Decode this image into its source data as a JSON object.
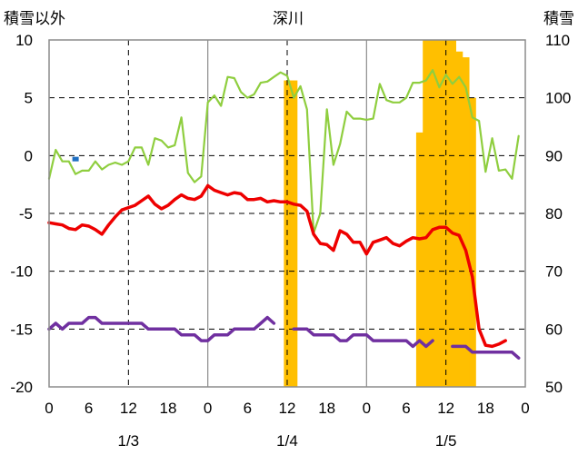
{
  "chart_data": {
    "type": "line",
    "title": "深川",
    "left_axis_label": "積雪以外",
    "right_axis_label": "積雪",
    "left_ylim": [
      -20,
      10
    ],
    "left_ticks": [
      10,
      5,
      0,
      -5,
      -10,
      -15,
      -20
    ],
    "right_ylim": [
      50,
      110
    ],
    "right_ticks": [
      110,
      100,
      90,
      80,
      70,
      60,
      50
    ],
    "x_hour_labels": [
      "0",
      "6",
      "12",
      "18",
      "0",
      "6",
      "12",
      "18",
      "0",
      "6",
      "12",
      "18",
      "0"
    ],
    "x_hour_positions": [
      0,
      6,
      12,
      18,
      24,
      30,
      36,
      42,
      48,
      54,
      60,
      66,
      72
    ],
    "dates": [
      {
        "label": "1/3",
        "hour": 12
      },
      {
        "label": "1/4",
        "hour": 36
      },
      {
        "label": "1/5",
        "hour": 60
      }
    ],
    "dashed_grid_hours": [
      12,
      36,
      60
    ],
    "solid_grid_hours": [
      24,
      48
    ],
    "colors": {
      "green": "#8fce3f",
      "red": "#ee0000",
      "purple": "#7030a0",
      "bars": "#ffbf00",
      "blue": "#1f6fc2"
    },
    "series": [
      {
        "key": "green",
        "axis": "left",
        "values": [
          [
            0,
            -2.0
          ],
          [
            1,
            0.5
          ],
          [
            2,
            -0.5
          ],
          [
            3,
            -0.5
          ],
          [
            4,
            -1.6
          ],
          [
            5,
            -1.3
          ],
          [
            6,
            -1.3
          ],
          [
            7,
            -0.5
          ],
          [
            8,
            -1.2
          ],
          [
            9,
            -0.8
          ],
          [
            10,
            -0.6
          ],
          [
            11,
            -0.8
          ],
          [
            12,
            -0.5
          ],
          [
            13,
            0.7
          ],
          [
            14,
            0.7
          ],
          [
            15,
            -0.8
          ],
          [
            16,
            1.5
          ],
          [
            17,
            1.3
          ],
          [
            18,
            0.7
          ],
          [
            19,
            0.9
          ],
          [
            20,
            3.3
          ],
          [
            21,
            -1.5
          ],
          [
            22,
            -2.3
          ],
          [
            23,
            -1.8
          ],
          [
            24,
            4.6
          ],
          [
            25,
            5.2
          ],
          [
            26,
            4.3
          ],
          [
            27,
            6.8
          ],
          [
            28,
            6.7
          ],
          [
            29,
            5.5
          ],
          [
            30,
            5.0
          ],
          [
            31,
            5.3
          ],
          [
            32,
            6.3
          ],
          [
            33,
            6.4
          ],
          [
            34,
            6.8
          ],
          [
            35,
            7.2
          ],
          [
            36,
            6.9
          ],
          [
            37,
            5.0
          ],
          [
            38,
            6.0
          ],
          [
            39,
            4.0
          ],
          [
            40,
            -6.7
          ],
          [
            41,
            -5.0
          ],
          [
            42,
            4.0
          ],
          [
            43,
            -0.8
          ],
          [
            44,
            1.0
          ],
          [
            45,
            3.8
          ],
          [
            46,
            3.2
          ],
          [
            47,
            3.2
          ],
          [
            48,
            3.1
          ],
          [
            49,
            3.2
          ],
          [
            50,
            6.2
          ],
          [
            51,
            4.8
          ],
          [
            52,
            4.6
          ],
          [
            53,
            4.6
          ],
          [
            54,
            5.0
          ],
          [
            55,
            6.3
          ],
          [
            56,
            6.3
          ],
          [
            57,
            6.5
          ],
          [
            58,
            7.4
          ],
          [
            59,
            5.9
          ],
          [
            60,
            7.0
          ],
          [
            61,
            6.2
          ],
          [
            62,
            6.8
          ],
          [
            63,
            5.9
          ],
          [
            64,
            3.3
          ],
          [
            65,
            3.0
          ],
          [
            66,
            -1.4
          ],
          [
            67,
            1.5
          ],
          [
            68,
            -1.3
          ],
          [
            69,
            -1.2
          ],
          [
            70,
            -2.0
          ],
          [
            71,
            1.7
          ]
        ]
      },
      {
        "key": "red",
        "axis": "left",
        "values": [
          [
            0,
            -5.8
          ],
          [
            1,
            -5.9
          ],
          [
            2,
            -6.0
          ],
          [
            3,
            -6.3
          ],
          [
            4,
            -6.4
          ],
          [
            5,
            -6.0
          ],
          [
            6,
            -6.1
          ],
          [
            7,
            -6.4
          ],
          [
            8,
            -6.8
          ],
          [
            9,
            -6.0
          ],
          [
            10,
            -5.3
          ],
          [
            11,
            -4.7
          ],
          [
            12,
            -4.5
          ],
          [
            13,
            -4.3
          ],
          [
            14,
            -3.9
          ],
          [
            15,
            -3.5
          ],
          [
            16,
            -4.2
          ],
          [
            17,
            -4.6
          ],
          [
            18,
            -4.3
          ],
          [
            19,
            -3.8
          ],
          [
            20,
            -3.4
          ],
          [
            21,
            -3.7
          ],
          [
            22,
            -3.8
          ],
          [
            23,
            -3.5
          ],
          [
            24,
            -2.6
          ],
          [
            25,
            -3.0
          ],
          [
            26,
            -3.2
          ],
          [
            27,
            -3.4
          ],
          [
            28,
            -3.2
          ],
          [
            29,
            -3.3
          ],
          [
            30,
            -3.8
          ],
          [
            31,
            -3.8
          ],
          [
            32,
            -3.7
          ],
          [
            33,
            -4.0
          ],
          [
            34,
            -3.9
          ],
          [
            35,
            -4.0
          ],
          [
            36,
            -4.0
          ],
          [
            37,
            -4.2
          ],
          [
            38,
            -4.3
          ],
          [
            39,
            -4.8
          ],
          [
            40,
            -6.8
          ],
          [
            41,
            -7.6
          ],
          [
            42,
            -7.7
          ],
          [
            43,
            -8.2
          ],
          [
            44,
            -6.5
          ],
          [
            45,
            -6.8
          ],
          [
            46,
            -7.5
          ],
          [
            47,
            -7.5
          ],
          [
            48,
            -8.5
          ],
          [
            49,
            -7.5
          ],
          [
            50,
            -7.3
          ],
          [
            51,
            -7.1
          ],
          [
            52,
            -7.6
          ],
          [
            53,
            -7.8
          ],
          [
            54,
            -7.4
          ],
          [
            55,
            -7.1
          ],
          [
            56,
            -7.2
          ],
          [
            57,
            -7.1
          ],
          [
            58,
            -6.4
          ],
          [
            59,
            -6.2
          ],
          [
            60,
            -6.2
          ],
          [
            61,
            -6.7
          ],
          [
            62,
            -6.9
          ],
          [
            63,
            -8.2
          ],
          [
            64,
            -10.5
          ],
          [
            65,
            -15.0
          ],
          [
            66,
            -16.4
          ],
          [
            67,
            -16.5
          ],
          [
            68,
            -16.3
          ],
          [
            69,
            -16.0
          ]
        ]
      },
      {
        "key": "purple",
        "axis": "left",
        "segments": [
          [
            [
              0,
              -15
            ],
            [
              1,
              -14.5
            ],
            [
              2,
              -15
            ],
            [
              3,
              -14.5
            ],
            [
              4,
              -14.5
            ],
            [
              5,
              -14.5
            ],
            [
              6,
              -14
            ],
            [
              7,
              -14
            ],
            [
              8,
              -14.5
            ],
            [
              9,
              -14.5
            ],
            [
              10,
              -14.5
            ],
            [
              11,
              -14.5
            ],
            [
              12,
              -14.5
            ],
            [
              13,
              -14.5
            ],
            [
              14,
              -14.5
            ],
            [
              15,
              -15
            ],
            [
              16,
              -15
            ],
            [
              17,
              -15
            ],
            [
              18,
              -15
            ],
            [
              19,
              -15
            ],
            [
              20,
              -15.5
            ],
            [
              21,
              -15.5
            ],
            [
              22,
              -15.5
            ],
            [
              23,
              -16
            ],
            [
              24,
              -16
            ],
            [
              25,
              -15.5
            ],
            [
              26,
              -15.5
            ],
            [
              27,
              -15.5
            ],
            [
              28,
              -15
            ],
            [
              29,
              -15
            ],
            [
              30,
              -15
            ],
            [
              31,
              -15
            ],
            [
              32,
              -14.5
            ],
            [
              33,
              -14
            ],
            [
              34,
              -14.5
            ]
          ],
          [
            [
              37,
              -15
            ],
            [
              38,
              -15
            ],
            [
              39,
              -15
            ],
            [
              40,
              -15.5
            ],
            [
              41,
              -15.5
            ],
            [
              42,
              -15.5
            ],
            [
              43,
              -15.5
            ],
            [
              44,
              -16
            ],
            [
              45,
              -16
            ],
            [
              46,
              -15.5
            ],
            [
              47,
              -15.5
            ],
            [
              48,
              -15.5
            ],
            [
              49,
              -16
            ],
            [
              50,
              -16
            ],
            [
              51,
              -16
            ],
            [
              52,
              -16
            ],
            [
              53,
              -16
            ],
            [
              54,
              -16
            ],
            [
              55,
              -16.5
            ],
            [
              56,
              -16
            ],
            [
              57,
              -16.5
            ],
            [
              58,
              -16
            ]
          ],
          [
            [
              61,
              -16.5
            ],
            [
              62,
              -16.5
            ],
            [
              63,
              -16.5
            ],
            [
              64,
              -17
            ],
            [
              65,
              -17
            ],
            [
              66,
              -17
            ],
            [
              67,
              -17
            ],
            [
              68,
              -17
            ],
            [
              69,
              -17
            ],
            [
              70,
              -17
            ],
            [
              71,
              -17.5
            ]
          ]
        ]
      },
      {
        "key": "blue",
        "axis": "left",
        "values": [
          [
            4,
            -0.3
          ]
        ]
      }
    ],
    "snow_bars": {
      "axis": "right",
      "bars": [
        [
          36,
          103
        ],
        [
          37,
          103
        ],
        [
          56,
          94
        ],
        [
          57,
          110
        ],
        [
          58,
          110
        ],
        [
          59,
          110
        ],
        [
          60,
          110
        ],
        [
          61,
          110
        ],
        [
          62,
          108
        ],
        [
          63,
          107
        ],
        [
          64,
          100
        ]
      ]
    }
  }
}
